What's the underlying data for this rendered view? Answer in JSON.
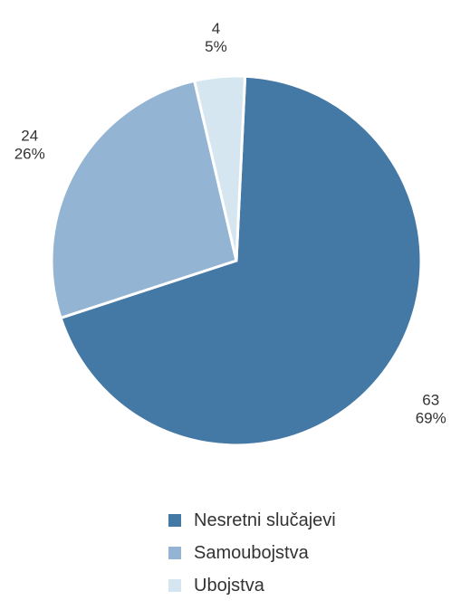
{
  "chart_data": {
    "type": "pie",
    "categories": [
      "Nesretni slučajevi",
      "Samoubojstva",
      "Ubojstva"
    ],
    "values": [
      63,
      24,
      4
    ],
    "percent_labels": [
      "69%",
      "26%",
      "5%"
    ],
    "colors": [
      "#4478a5",
      "#93b4d2",
      "#d6e6f0"
    ],
    "title": "",
    "legend_position": "bottom"
  },
  "legend": {
    "items": [
      {
        "label": "Nesretni slučajevi",
        "color": "#4478a5"
      },
      {
        "label": "Samoubojstva",
        "color": "#93b4d2"
      },
      {
        "label": "Ubojstva",
        "color": "#d6e6f0"
      }
    ]
  }
}
